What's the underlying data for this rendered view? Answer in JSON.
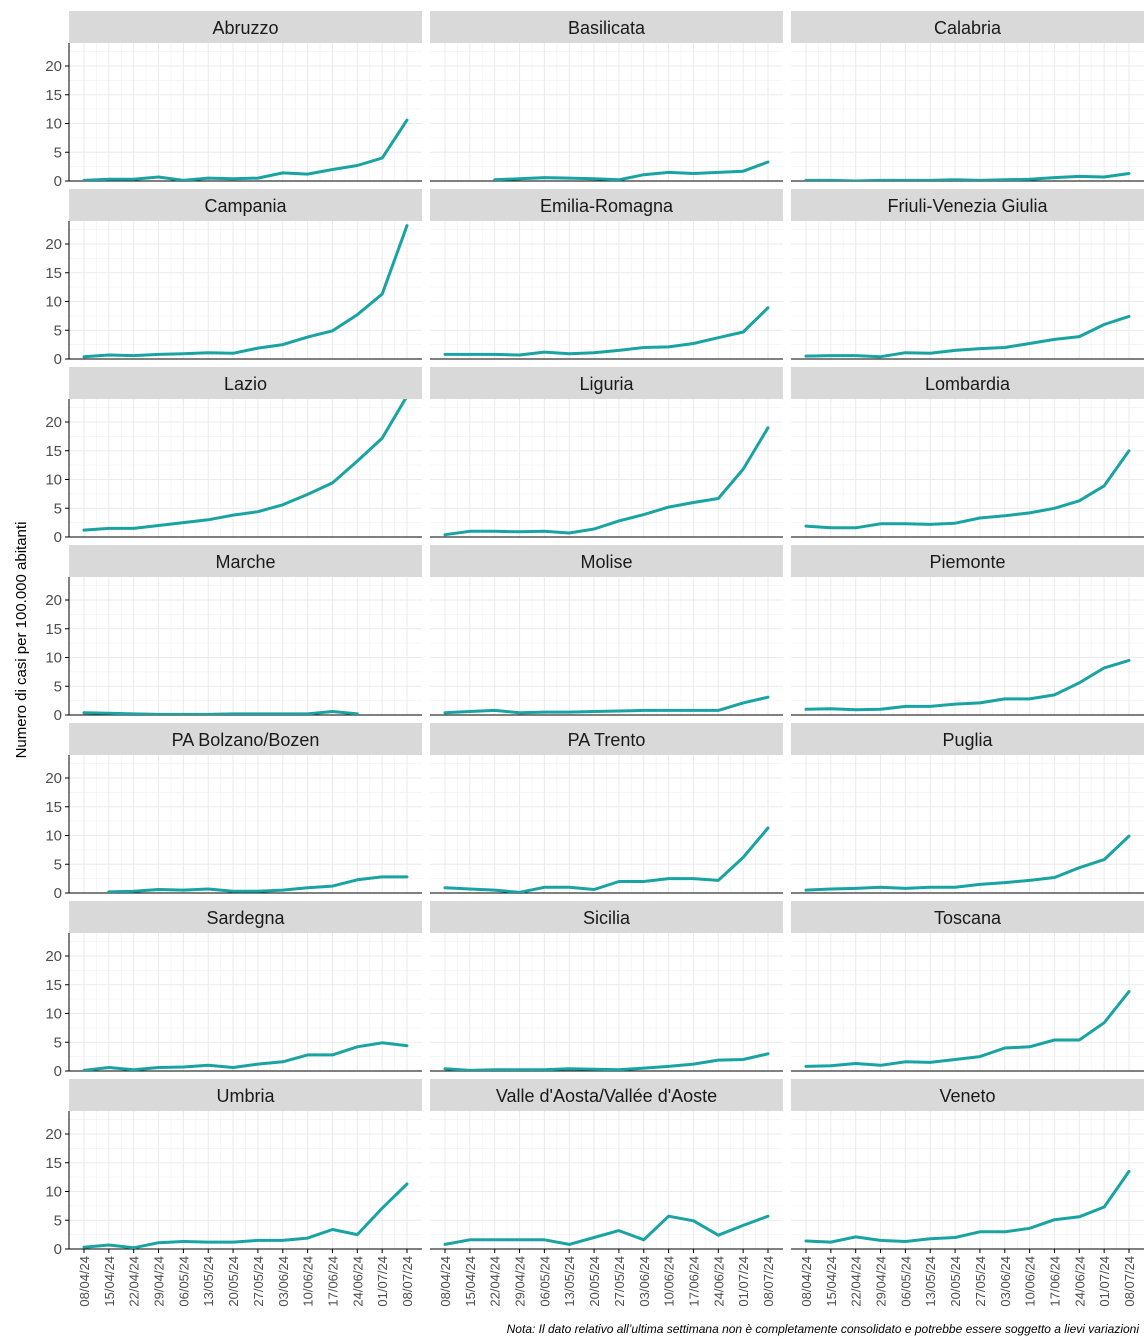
{
  "chart_data": {
    "type": "line",
    "layout": "small-multiples",
    "ylabel": "Numero di casi per 100.000 abitanti",
    "ylim": [
      0,
      24
    ],
    "yticks": [
      0,
      5,
      10,
      15,
      20
    ],
    "grid": true,
    "line_color": "#1aa3a3",
    "note": "Nota: Il dato relativo all’ultima settimana non è completamente consolidato e potrebbe essere soggetto a lievi variazioni",
    "x": [
      "08/04/24",
      "15/04/24",
      "22/04/24",
      "29/04/24",
      "06/05/24",
      "13/05/24",
      "20/05/24",
      "27/05/24",
      "03/06/24",
      "10/06/24",
      "17/06/24",
      "24/06/24",
      "01/07/24",
      "08/07/24"
    ],
    "panels": [
      {
        "name": "Abruzzo",
        "values": [
          0.1,
          0.3,
          0.3,
          0.7,
          0.1,
          0.5,
          0.4,
          0.5,
          1.4,
          1.2,
          2.0,
          2.7,
          4.0,
          10.6
        ]
      },
      {
        "name": "Basilicata",
        "values": [
          null,
          null,
          0.2,
          0.4,
          0.6,
          0.5,
          0.4,
          0.2,
          1.1,
          1.5,
          1.3,
          1.5,
          1.7,
          3.3
        ]
      },
      {
        "name": "Calabria",
        "values": [
          0.1,
          0.1,
          0.0,
          0.1,
          0.1,
          0.1,
          0.2,
          0.1,
          0.2,
          0.3,
          0.6,
          0.8,
          0.7,
          1.3
        ]
      },
      {
        "name": "Campania",
        "values": [
          0.4,
          0.7,
          0.6,
          0.8,
          0.9,
          1.1,
          1.0,
          1.9,
          2.5,
          3.8,
          4.9,
          7.7,
          11.3,
          23.2
        ]
      },
      {
        "name": "Emilia-Romagna",
        "values": [
          0.8,
          0.8,
          0.8,
          0.7,
          1.2,
          0.9,
          1.1,
          1.5,
          2.0,
          2.1,
          2.7,
          3.7,
          4.7,
          8.9
        ]
      },
      {
        "name": "Friuli-Venezia Giulia",
        "values": [
          0.5,
          0.6,
          0.6,
          0.4,
          1.1,
          1.0,
          1.5,
          1.8,
          2.0,
          2.7,
          3.4,
          3.9,
          6.0,
          7.4
        ]
      },
      {
        "name": "Lazio",
        "values": [
          1.2,
          1.5,
          1.5,
          2.0,
          2.5,
          3.0,
          3.8,
          4.4,
          5.6,
          7.4,
          9.4,
          13.2,
          17.2,
          24.5
        ]
      },
      {
        "name": "Liguria",
        "values": [
          0.4,
          1.0,
          1.0,
          0.9,
          1.0,
          0.7,
          1.4,
          2.8,
          3.9,
          5.2,
          6.0,
          6.7,
          11.8,
          19.0
        ]
      },
      {
        "name": "Lombardia",
        "values": [
          1.9,
          1.6,
          1.6,
          2.3,
          2.3,
          2.2,
          2.4,
          3.3,
          3.7,
          4.2,
          5.0,
          6.3,
          8.9,
          15.0
        ]
      },
      {
        "name": "Marche",
        "values": [
          0.4,
          0.3,
          0.2,
          0.1,
          0.1,
          0.1,
          0.2,
          0.2,
          0.2,
          0.2,
          0.6,
          0.2,
          null,
          null
        ]
      },
      {
        "name": "Molise",
        "values": [
          0.4,
          0.6,
          0.8,
          0.4,
          0.5,
          0.5,
          0.6,
          0.7,
          0.8,
          0.8,
          0.8,
          0.8,
          2.1,
          3.1
        ]
      },
      {
        "name": "Piemonte",
        "values": [
          1.0,
          1.1,
          0.9,
          1.0,
          1.5,
          1.5,
          1.9,
          2.1,
          2.8,
          2.8,
          3.5,
          5.6,
          8.2,
          9.5
        ]
      },
      {
        "name": "PA Bolzano/Bozen",
        "values": [
          null,
          0.2,
          0.3,
          0.6,
          0.5,
          0.7,
          0.3,
          0.3,
          0.5,
          0.9,
          1.2,
          2.3,
          2.8,
          2.8
        ]
      },
      {
        "name": "PA Trento",
        "values": [
          0.9,
          0.7,
          0.5,
          0.1,
          1.0,
          1.0,
          0.6,
          2.0,
          2.0,
          2.5,
          2.5,
          2.2,
          6.2,
          11.3
        ]
      },
      {
        "name": "Puglia",
        "values": [
          0.5,
          0.7,
          0.8,
          1.0,
          0.8,
          1.0,
          1.0,
          1.5,
          1.8,
          2.2,
          2.7,
          4.4,
          5.8,
          9.9
        ]
      },
      {
        "name": "Sardegna",
        "values": [
          0.1,
          0.6,
          0.2,
          0.6,
          0.7,
          1.0,
          0.6,
          1.2,
          1.6,
          2.8,
          2.8,
          4.2,
          4.9,
          4.4
        ]
      },
      {
        "name": "Sicilia",
        "values": [
          0.4,
          0.1,
          0.2,
          0.2,
          0.2,
          0.4,
          0.3,
          0.2,
          0.5,
          0.8,
          1.2,
          1.9,
          2.0,
          3.0
        ]
      },
      {
        "name": "Toscana",
        "values": [
          0.8,
          0.9,
          1.3,
          1.0,
          1.6,
          1.5,
          2.0,
          2.5,
          4.0,
          4.2,
          5.4,
          5.4,
          8.4,
          13.8
        ]
      },
      {
        "name": "Umbria",
        "values": [
          0.3,
          0.7,
          0.2,
          1.1,
          1.3,
          1.2,
          1.2,
          1.5,
          1.5,
          1.9,
          3.4,
          2.5,
          7.1,
          11.3
        ]
      },
      {
        "name": "Valle d'Aosta/Vallée d'Aoste",
        "values": [
          0.8,
          1.6,
          1.6,
          1.6,
          1.6,
          0.8,
          2.0,
          3.2,
          1.6,
          5.7,
          4.9,
          2.4,
          4.1,
          5.7
        ]
      },
      {
        "name": "Veneto",
        "values": [
          1.4,
          1.2,
          2.1,
          1.5,
          1.3,
          1.8,
          2.0,
          3.0,
          3.0,
          3.6,
          5.1,
          5.6,
          7.3,
          13.5
        ]
      }
    ]
  }
}
